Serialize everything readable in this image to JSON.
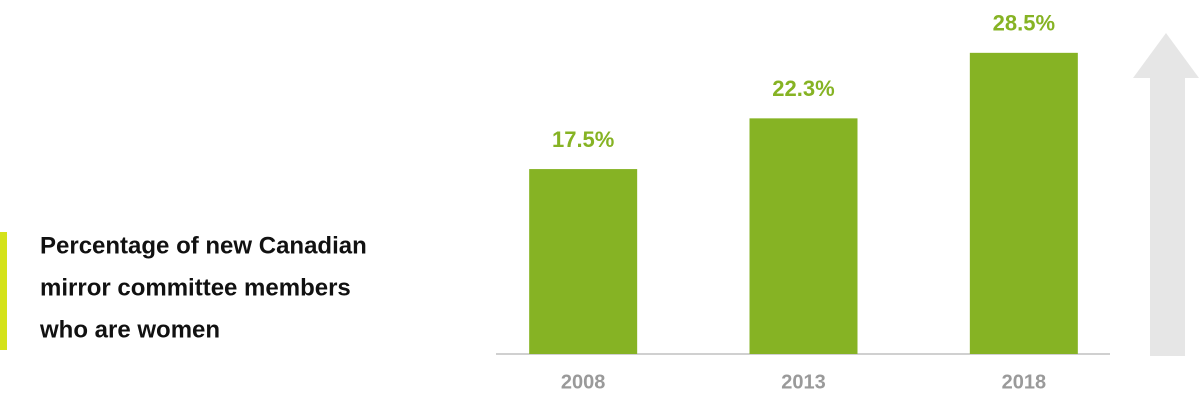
{
  "chart_data": {
    "type": "bar",
    "title": [
      "Percentage of new Canadian",
      "mirror committee members",
      "who are women"
    ],
    "categories": [
      "2008",
      "2013",
      "2018"
    ],
    "values": [
      17.5,
      22.3,
      28.5
    ],
    "value_labels": [
      "17.5%",
      "22.3%",
      "28.5%"
    ],
    "color": "#86b324",
    "ylim": [
      0,
      33.5
    ]
  }
}
